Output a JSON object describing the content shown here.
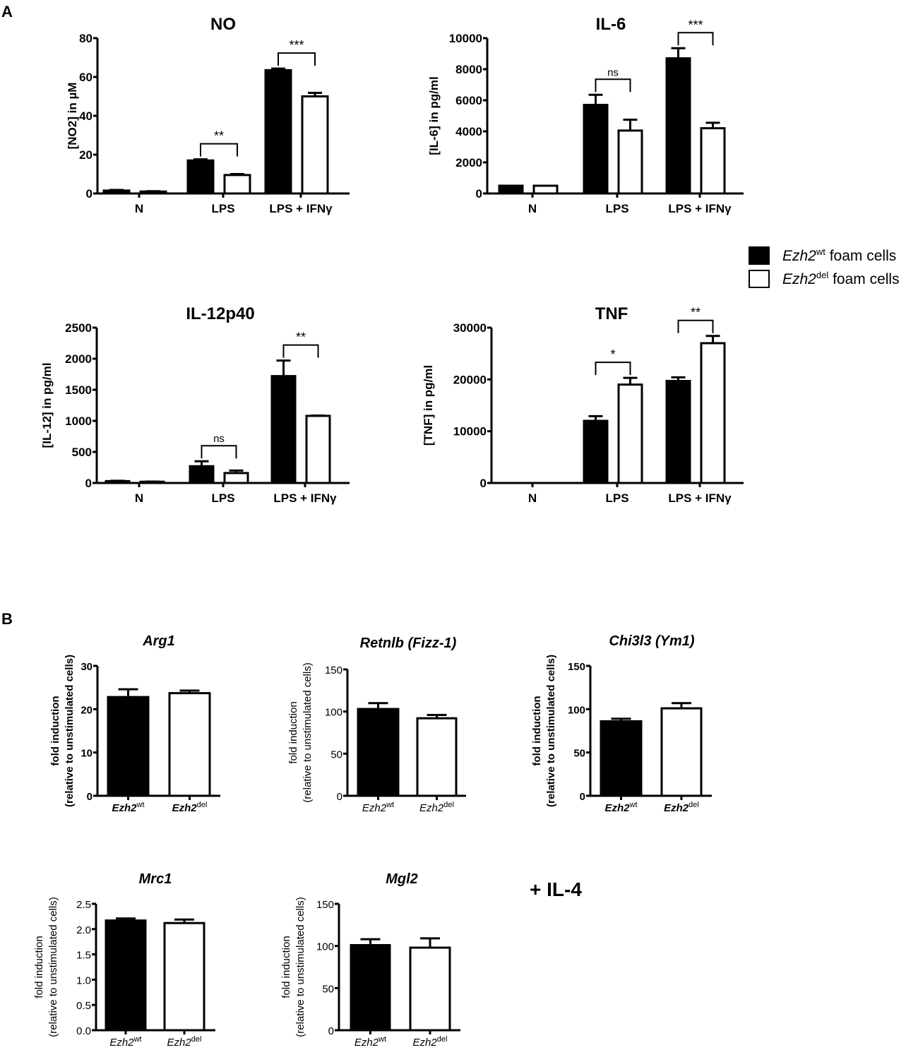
{
  "figure": {
    "panel_a_label": "A",
    "panel_b_label": "B",
    "il4_annotation": "+ IL-4"
  },
  "legend": {
    "items": [
      {
        "gene": "Ezh2",
        "sup": "wt",
        "suffix": " foam cells",
        "color": "#000000"
      },
      {
        "gene": "Ezh2",
        "sup": "del",
        "suffix": " foam cells",
        "color": "#ffffff"
      }
    ]
  },
  "chart_data": [
    {
      "id": "no",
      "type": "bar",
      "title": "NO",
      "ylabel": "[NO2] in µM",
      "ylim": [
        0,
        80
      ],
      "yticks": [
        0,
        20,
        40,
        60,
        80
      ],
      "categories": [
        "N",
        "LPS",
        "LPS + IFNγ"
      ],
      "series": [
        {
          "name": "Ezh2wt foam cells",
          "values": [
            1.5,
            17,
            63.5
          ],
          "errors": [
            0.3,
            0.6,
            0.8
          ]
        },
        {
          "name": "Ezh2del foam cells",
          "values": [
            1,
            9.5,
            50
          ],
          "errors": [
            0.2,
            0.5,
            1.8
          ]
        }
      ],
      "significance": [
        null,
        "**",
        "***"
      ]
    },
    {
      "id": "il6",
      "type": "bar",
      "title": "IL-6",
      "ylabel": "[IL-6] in pg/ml",
      "ylim": [
        0,
        10000
      ],
      "yticks": [
        0,
        2000,
        4000,
        6000,
        8000,
        10000
      ],
      "categories": [
        "N",
        "LPS",
        "LPS + IFNγ"
      ],
      "series": [
        {
          "name": "Ezh2wt foam cells",
          "values": [
            500,
            5700,
            8700
          ],
          "errors": [
            0,
            650,
            650
          ]
        },
        {
          "name": "Ezh2del foam cells",
          "values": [
            500,
            4050,
            4200
          ],
          "errors": [
            0,
            700,
            350
          ]
        }
      ],
      "significance": [
        null,
        "ns",
        "***"
      ]
    },
    {
      "id": "il12",
      "type": "bar",
      "title": "IL-12p40",
      "ylabel": "[IL-12] in pg/ml",
      "ylim": [
        0,
        2500
      ],
      "yticks": [
        0,
        500,
        1000,
        1500,
        2000,
        2500
      ],
      "categories": [
        "N",
        "LPS",
        "LPS + IFNγ"
      ],
      "series": [
        {
          "name": "Ezh2wt foam cells",
          "values": [
            30,
            270,
            1720
          ],
          "errors": [
            5,
            80,
            250
          ]
        },
        {
          "name": "Ezh2del foam cells",
          "values": [
            20,
            160,
            1080
          ],
          "errors": [
            3,
            40,
            5
          ]
        }
      ],
      "significance": [
        null,
        "ns",
        "**"
      ]
    },
    {
      "id": "tnf",
      "type": "bar",
      "title": "TNF",
      "ylabel": "[TNF] in pg/ml",
      "ylim": [
        0,
        30000
      ],
      "yticks": [
        0,
        10000,
        20000,
        30000
      ],
      "categories": [
        "N",
        "LPS",
        "LPS + IFNγ"
      ],
      "series": [
        {
          "name": "Ezh2wt foam cells",
          "values": [
            0,
            12000,
            19700
          ],
          "errors": [
            0,
            900,
            700
          ]
        },
        {
          "name": "Ezh2del foam cells",
          "values": [
            0,
            19000,
            27000
          ],
          "errors": [
            0,
            1300,
            1400
          ]
        }
      ],
      "significance": [
        null,
        "*",
        "**"
      ]
    },
    {
      "id": "arg1",
      "type": "bar",
      "title": "Arg1",
      "ylabel": "fold induction (relative to unstimulated cells)",
      "ylim": [
        0,
        30
      ],
      "yticks": [
        0,
        10,
        20,
        30
      ],
      "categories": [
        "Ezh2wt",
        "Ezh2del"
      ],
      "values": [
        22.8,
        23.7
      ],
      "errors": [
        1.8,
        0.6
      ]
    },
    {
      "id": "retnlb",
      "type": "bar",
      "title": "Retnlb (Fizz-1)",
      "ylabel": "fold induction (relative to unstimulated cells)",
      "ylim": [
        0,
        150
      ],
      "yticks": [
        0,
        50,
        100,
        150
      ],
      "categories": [
        "Ezh2wt",
        "Ezh2del"
      ],
      "values": [
        103,
        92
      ],
      "errors": [
        7,
        4
      ]
    },
    {
      "id": "chi3l3",
      "type": "bar",
      "title": "Chi3l3 (Ym1)",
      "ylabel": "fold induction (relative to unstimulated cells)",
      "ylim": [
        0,
        150
      ],
      "yticks": [
        0,
        50,
        100,
        150
      ],
      "categories": [
        "Ezh2wt",
        "Ezh2del"
      ],
      "values": [
        86,
        101
      ],
      "errors": [
        3,
        6
      ]
    },
    {
      "id": "mrc1",
      "type": "bar",
      "title": "Mrc1",
      "ylabel": "fold induction (relative to unstimulated cells)",
      "ylim": [
        0,
        2.5
      ],
      "yticks": [
        "0.0",
        "0.5",
        "1.0",
        "1.5",
        "2.0",
        "2.5"
      ],
      "categories": [
        "Ezh2wt",
        "Ezh2del"
      ],
      "values": [
        2.17,
        2.12
      ],
      "errors": [
        0.04,
        0.07
      ]
    },
    {
      "id": "mgl2",
      "type": "bar",
      "title": "Mgl2",
      "ylabel": "fold induction (relative to unstimulated cells)",
      "ylim": [
        0,
        150
      ],
      "yticks": [
        0,
        50,
        100,
        150
      ],
      "categories": [
        "Ezh2wt",
        "Ezh2del"
      ],
      "values": [
        101,
        98
      ],
      "errors": [
        7,
        11
      ]
    }
  ]
}
